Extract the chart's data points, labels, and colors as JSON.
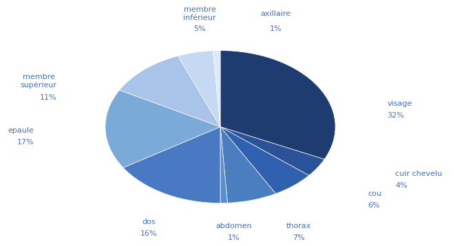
{
  "labels": [
    "visage",
    "cuir chevelu",
    "cou",
    "thorax",
    "abdomen",
    "dos",
    "epaule",
    "membre\nsupérieur",
    "membre\ninférieur",
    "axillaire"
  ],
  "label_singles": [
    "visage",
    "cuir chevelu",
    "cou",
    "thorax",
    "abdomen",
    "dos",
    "epaule",
    "membre supérieur",
    "membre inférieur",
    "axillaire"
  ],
  "values": [
    32,
    4,
    6,
    7,
    1,
    16,
    17,
    11,
    5,
    1
  ],
  "colors": [
    "#1f3c70",
    "#2a5298",
    "#3060b0",
    "#4a7ec0",
    "#5a8fcc",
    "#4a79c4",
    "#7baad8",
    "#a8c4e8",
    "#c5d9f2",
    "#dce9f8"
  ],
  "pct_display": [
    "32%",
    "4%",
    "6%",
    "7%",
    "1%",
    "16%",
    "17%",
    "11%",
    "5%",
    "1%"
  ],
  "text_color": "#4472c4",
  "startangle": 90,
  "figsize": [
    6.61,
    3.58
  ],
  "dpi": 100
}
